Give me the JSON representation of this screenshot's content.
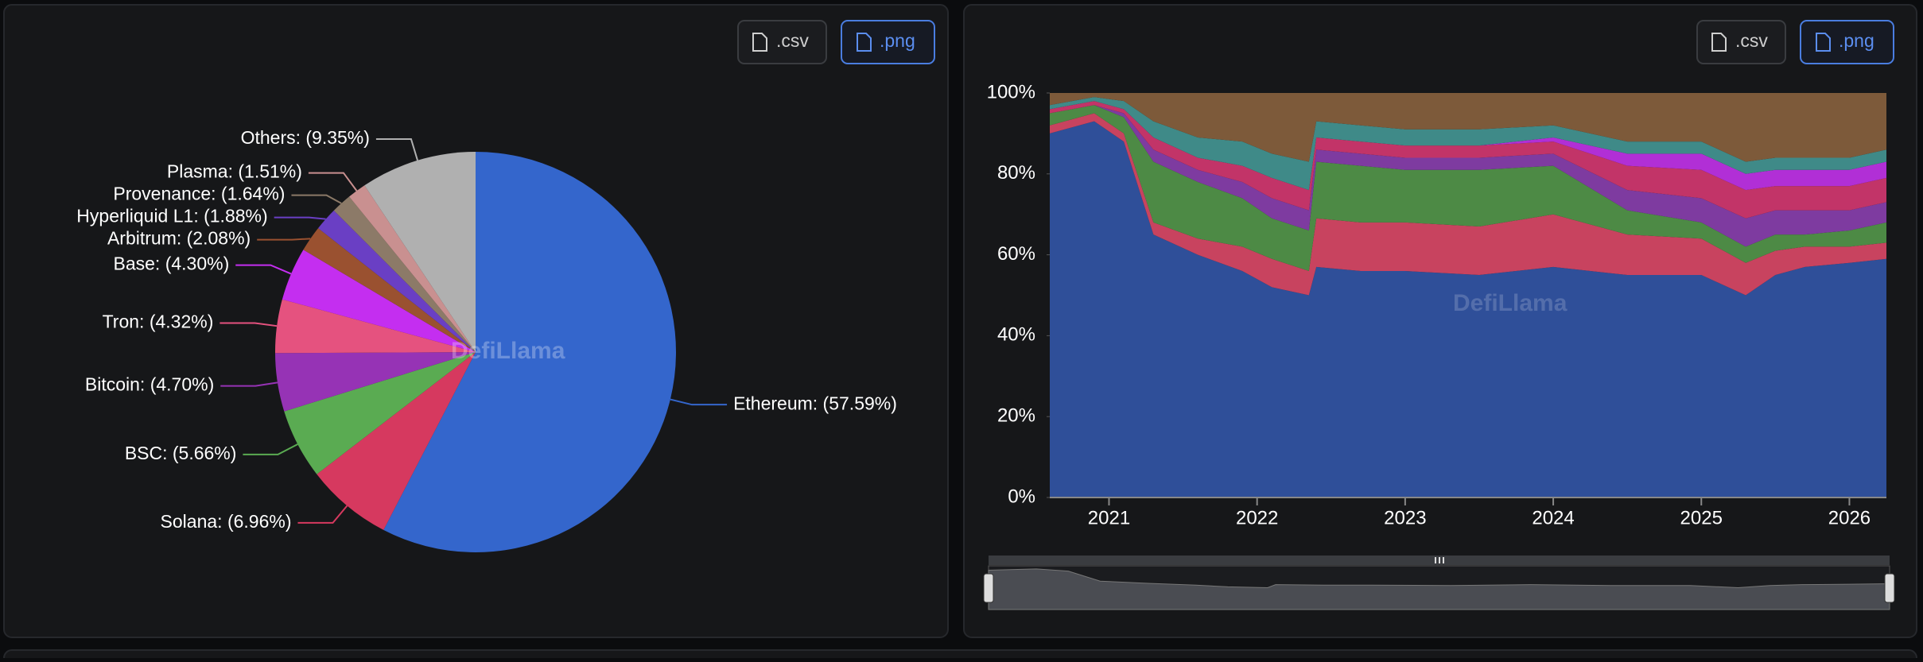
{
  "buttons": [
    [
      ".csv",
      ".png"
    ],
    [
      ".csv",
      ".png"
    ]
  ],
  "watermark": "DefiLlama",
  "chart_data": [
    {
      "type": "pie",
      "values": [
        57.59,
        6.96,
        5.66,
        4.7,
        4.32,
        4.3,
        2.08,
        1.88,
        1.64,
        1.51,
        9.35
      ],
      "value_labels": [
        "Ethereum: (57.59%)",
        "Solana: (6.96%)",
        "BSC: (5.66%)",
        "Bitcoin: (4.70%)",
        "Tron: (4.32%)",
        "Base: (4.30%)",
        "Arbitrum: (2.08%)",
        "Hyperliquid L1: (1.88%)",
        "Provenance: (1.64%)",
        "Plasma: (1.51%)",
        "Others: (9.35%)"
      ],
      "colors": [
        "#3466cc",
        "#d6395f",
        "#5aab52",
        "#9633b5",
        "#e5527f",
        "#c42ef0",
        "#9a5130",
        "#6a3fc4",
        "#8c7a68",
        "#c99090",
        "#b0b0b0"
      ]
    },
    {
      "type": "area",
      "stacked": true,
      "x": [
        2020.6,
        2020.9,
        2021.1,
        2021.3,
        2021.6,
        2021.9,
        2022.1,
        2022.35,
        2022.4,
        2022.7,
        2023.0,
        2023.5,
        2024.0,
        2024.5,
        2025.0,
        2025.3,
        2025.5,
        2025.7,
        2026.0,
        2026.25
      ],
      "xlim": [
        2020.6,
        2026.25
      ],
      "xticks": [
        2021,
        2022,
        2023,
        2024,
        2025,
        2026
      ],
      "ylim": [
        0,
        100
      ],
      "yticks": [
        {
          "value": 0,
          "label": "0%"
        },
        {
          "value": 20,
          "label": "20%"
        },
        {
          "value": 40,
          "label": "40%"
        },
        {
          "value": 60,
          "label": "60%"
        },
        {
          "value": 80,
          "label": "80%"
        },
        {
          "value": 100,
          "label": "100%"
        }
      ],
      "series": [
        {
          "color": "#2f4f99",
          "values": [
            90,
            93,
            88,
            65,
            60,
            56,
            52,
            50,
            57,
            56,
            56,
            55,
            57,
            55,
            55,
            50,
            55,
            57,
            58,
            59
          ]
        },
        {
          "color": "#c8435f",
          "values": [
            2,
            2,
            2,
            3,
            4,
            6,
            7,
            6,
            12,
            12,
            12,
            12,
            13,
            10,
            9,
            8,
            6,
            5,
            4,
            4
          ]
        },
        {
          "color": "#4d8a45",
          "values": [
            3,
            2,
            4,
            15,
            14,
            12,
            10,
            10,
            14,
            14,
            13,
            14,
            12,
            6,
            4,
            4,
            4,
            3,
            4,
            5
          ]
        },
        {
          "color": "#7e3ba0",
          "values": [
            0,
            0,
            1,
            3,
            3,
            4,
            5,
            5,
            3,
            3,
            3,
            3,
            3,
            5,
            6,
            7,
            6,
            6,
            5,
            5
          ]
        },
        {
          "color": "#c23468",
          "values": [
            1,
            1,
            1,
            3,
            3,
            4,
            5,
            5,
            3,
            3,
            3,
            3,
            3,
            6,
            7,
            7,
            6,
            6,
            6,
            6
          ]
        },
        {
          "color": "#b12fd6",
          "values": [
            0,
            0,
            0,
            0,
            0,
            0,
            0,
            0,
            0,
            0,
            0,
            0,
            1,
            3,
            4,
            4,
            4,
            4,
            4,
            4
          ]
        },
        {
          "color": "#3f8a88",
          "values": [
            1,
            1,
            2,
            4,
            5,
            6,
            6,
            7,
            4,
            4,
            4,
            4,
            3,
            3,
            3,
            3,
            3,
            3,
            3,
            3
          ]
        },
        {
          "color": "#7d5a3a",
          "values": [
            3,
            1,
            2,
            7,
            11,
            12,
            15,
            17,
            7,
            8,
            9,
            9,
            8,
            12,
            12,
            17,
            16,
            16,
            16,
            14
          ]
        }
      ]
    }
  ]
}
